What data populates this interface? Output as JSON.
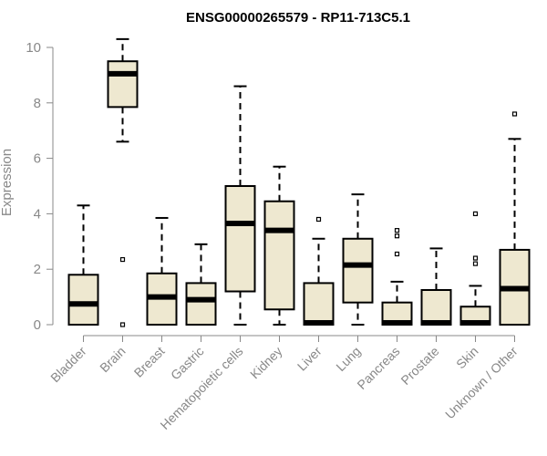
{
  "chart_data": {
    "type": "boxplot",
    "title": "ENSG00000265579 - RP11-713C5.1",
    "xlabel": "",
    "ylabel": "Expression",
    "ylim": [
      0,
      10.5
    ],
    "yticks": [
      0,
      2,
      4,
      6,
      8,
      10
    ],
    "grid": false,
    "colors": {
      "box_fill": "#EEE8D0",
      "stroke": "#000000",
      "axis": "#888888",
      "title": "#000000"
    },
    "categories": [
      "Bladder",
      "Brain",
      "Breast",
      "Gastric",
      "Hematopoietic cells",
      "Kidney",
      "Liver",
      "Lung",
      "Pancreas",
      "Prostate",
      "Skin",
      "Unknown / Other"
    ],
    "boxes": [
      {
        "category": "Bladder",
        "min": 0,
        "q1": 0,
        "median": 0.75,
        "q3": 1.8,
        "max": 4.3,
        "outliers": []
      },
      {
        "category": "Brain",
        "min": 6.6,
        "q1": 7.85,
        "median": 9.05,
        "q3": 9.5,
        "max": 10.3,
        "outliers": [
          2.35,
          0
        ]
      },
      {
        "category": "Breast",
        "min": 0,
        "q1": 0,
        "median": 1.0,
        "q3": 1.85,
        "max": 3.85,
        "outliers": []
      },
      {
        "category": "Gastric",
        "min": 0,
        "q1": 0,
        "median": 0.9,
        "q3": 1.5,
        "max": 2.9,
        "outliers": []
      },
      {
        "category": "Hematopoietic cells",
        "min": 0,
        "q1": 1.2,
        "median": 3.65,
        "q3": 5.0,
        "max": 8.6,
        "outliers": []
      },
      {
        "category": "Kidney",
        "min": 0,
        "q1": 0.55,
        "median": 3.4,
        "q3": 4.45,
        "max": 5.7,
        "outliers": []
      },
      {
        "category": "Liver",
        "min": 0,
        "q1": 0,
        "median": 0.02,
        "q3": 1.5,
        "max": 3.1,
        "outliers": [
          3.8
        ]
      },
      {
        "category": "Lung",
        "min": 0,
        "q1": 0.8,
        "median": 2.15,
        "q3": 3.1,
        "max": 4.7,
        "outliers": []
      },
      {
        "category": "Pancreas",
        "min": 0,
        "q1": 0,
        "median": 0.02,
        "q3": 0.8,
        "max": 1.55,
        "outliers": [
          2.55,
          3.2,
          3.4
        ]
      },
      {
        "category": "Prostate",
        "min": 0,
        "q1": 0,
        "median": 0.02,
        "q3": 1.25,
        "max": 2.75,
        "outliers": []
      },
      {
        "category": "Skin",
        "min": 0,
        "q1": 0,
        "median": 0.02,
        "q3": 0.65,
        "max": 1.4,
        "outliers": [
          2.2,
          2.4,
          4.0
        ]
      },
      {
        "category": "Unknown / Other",
        "min": 0,
        "q1": 0,
        "median": 1.3,
        "q3": 2.7,
        "max": 6.7,
        "outliers": [
          7.6
        ]
      }
    ]
  }
}
